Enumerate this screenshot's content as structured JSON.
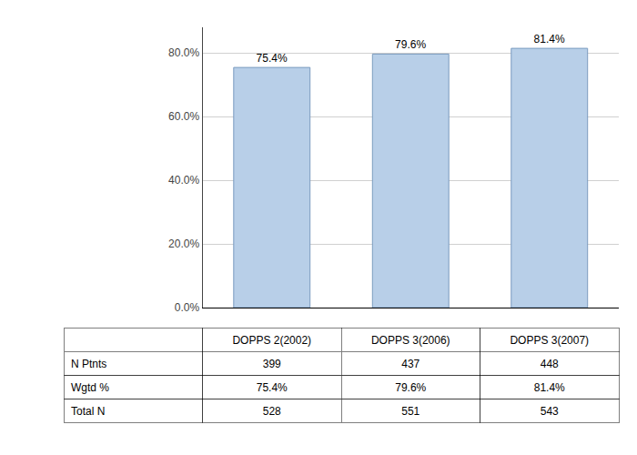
{
  "chart_data": {
    "type": "bar",
    "categories": [
      "DOPPS 2(2002)",
      "DOPPS 3(2006)",
      "DOPPS 3(2007)"
    ],
    "values": [
      75.4,
      79.6,
      81.4
    ],
    "value_labels": [
      "75.4%",
      "79.6%",
      "81.4%"
    ],
    "data_labels": true,
    "color": "#b8cfe8",
    "ylim": [
      0,
      88
    ],
    "yticks": [
      {
        "value": 0.0,
        "label": "0.0%"
      },
      {
        "value": 20.0,
        "label": "20.0%"
      },
      {
        "value": 40.0,
        "label": "40.0%"
      },
      {
        "value": 60.0,
        "label": "60.0%"
      },
      {
        "value": 80.0,
        "label": "80.0%"
      }
    ],
    "grid": true,
    "tick_labels": "y",
    "table_rows": [
      "N Ptnts",
      "Wgtd %",
      "Total N"
    ],
    "table_data": [
      [
        "399",
        "437",
        "448"
      ],
      [
        "75.4%",
        "79.6%",
        "81.4%"
      ],
      [
        "528",
        "551",
        "543"
      ]
    ]
  }
}
